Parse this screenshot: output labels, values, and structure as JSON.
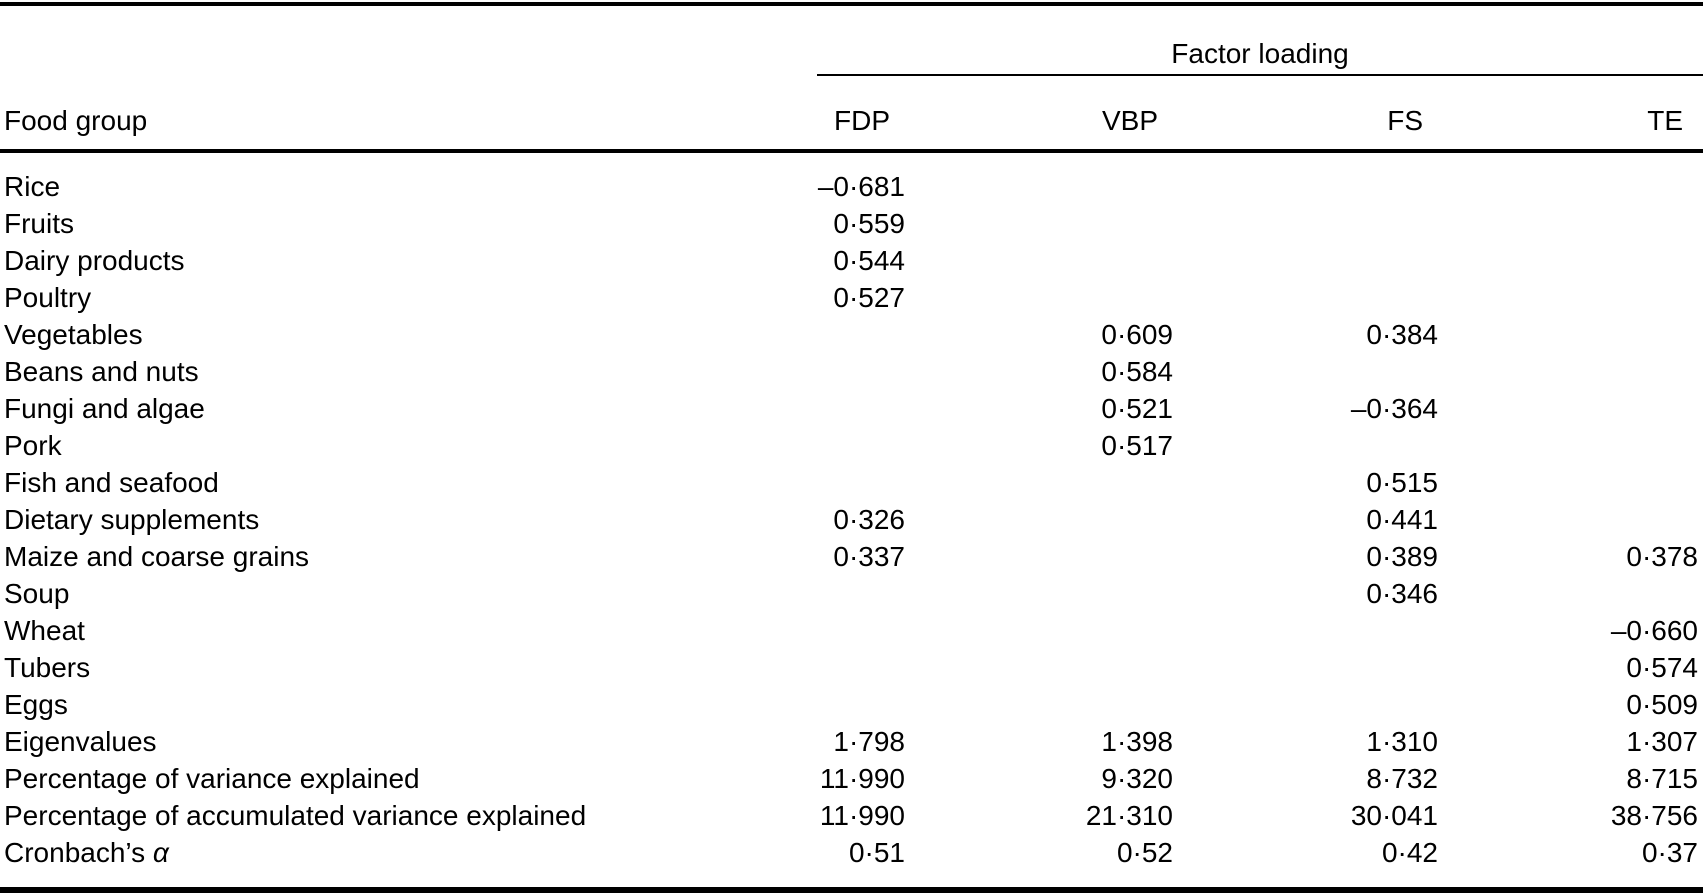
{
  "table": {
    "spanner_title": "Factor loading",
    "row_header": "Food group",
    "columns": [
      "FDP",
      "VBP",
      "FS",
      "TE"
    ],
    "rows": [
      {
        "label": "Rice",
        "values": [
          "–0·681",
          "",
          "",
          ""
        ]
      },
      {
        "label": "Fruits",
        "values": [
          "0·559",
          "",
          "",
          ""
        ]
      },
      {
        "label": "Dairy products",
        "values": [
          "0·544",
          "",
          "",
          ""
        ]
      },
      {
        "label": "Poultry",
        "values": [
          "0·527",
          "",
          "",
          ""
        ]
      },
      {
        "label": "Vegetables",
        "values": [
          "",
          "0·609",
          "0·384",
          ""
        ]
      },
      {
        "label": "Beans and nuts",
        "values": [
          "",
          "0·584",
          "",
          ""
        ]
      },
      {
        "label": "Fungi and algae",
        "values": [
          "",
          "0·521",
          "–0·364",
          ""
        ]
      },
      {
        "label": "Pork",
        "values": [
          "",
          "0·517",
          "",
          ""
        ]
      },
      {
        "label": "Fish and seafood",
        "values": [
          "",
          "",
          "0·515",
          ""
        ]
      },
      {
        "label": "Dietary supplements",
        "values": [
          "0·326",
          "",
          "0·441",
          ""
        ]
      },
      {
        "label": "Maize and coarse grains",
        "values": [
          "0·337",
          "",
          "0·389",
          "0·378"
        ]
      },
      {
        "label": "Soup",
        "values": [
          "",
          "",
          "0·346",
          ""
        ]
      },
      {
        "label": "Wheat",
        "values": [
          "",
          "",
          "",
          "–0·660"
        ]
      },
      {
        "label": "Tubers",
        "values": [
          "",
          "",
          "",
          "0·574"
        ]
      },
      {
        "label": "Eggs",
        "values": [
          "",
          "",
          "",
          "0·509"
        ]
      },
      {
        "label": "Eigenvalues",
        "values": [
          "1·798",
          "1·398",
          "1·310",
          "1·307"
        ]
      },
      {
        "label": "Percentage of variance explained",
        "values": [
          "11·990",
          "9·320",
          "8·732",
          "8·715"
        ]
      },
      {
        "label": "Percentage of accumulated variance explained",
        "values": [
          "11·990",
          "21·310",
          "30·041",
          "38·756"
        ]
      },
      {
        "label": "Cronbach’s ",
        "label_italic": "α",
        "values": [
          "0·51",
          "0·52",
          "0·42",
          "0·37"
        ]
      }
    ]
  },
  "colors": {
    "text": "#000000",
    "background": "#ffffff",
    "rule": "#000000"
  }
}
